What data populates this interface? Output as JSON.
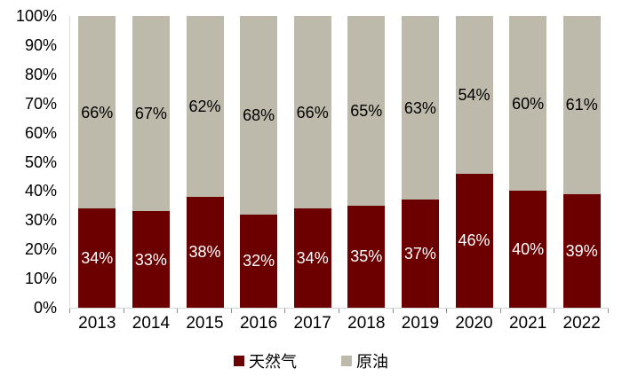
{
  "chart_data": {
    "type": "bar",
    "variant": "stacked-100-percent",
    "title": "",
    "categories": [
      "2013",
      "2014",
      "2015",
      "2016",
      "2017",
      "2018",
      "2019",
      "2020",
      "2021",
      "2022"
    ],
    "series": [
      {
        "id": "natural-gas",
        "name": "天然气",
        "color": "#6C0000",
        "label_color": "#FFFFFF",
        "values": [
          34,
          33,
          38,
          32,
          34,
          35,
          37,
          46,
          40,
          39
        ]
      },
      {
        "id": "crude-oil",
        "name": "原油",
        "color": "#BDBAAB",
        "label_color": "#000000",
        "values": [
          66,
          67,
          62,
          68,
          66,
          65,
          63,
          54,
          60,
          61
        ]
      }
    ],
    "y_axis": {
      "ticks": [
        "100%",
        "90%",
        "80%",
        "70%",
        "60%",
        "50%",
        "40%",
        "30%",
        "20%",
        "10%",
        "0%"
      ],
      "min": 0,
      "max": 100,
      "step": 10
    },
    "x_axis": {
      "labels": [
        "2013",
        "2014",
        "2015",
        "2016",
        "2017",
        "2018",
        "2019",
        "2020",
        "2021",
        "2022"
      ]
    },
    "data_label_suffix": "%",
    "grid": false,
    "legend_position": "bottom"
  }
}
